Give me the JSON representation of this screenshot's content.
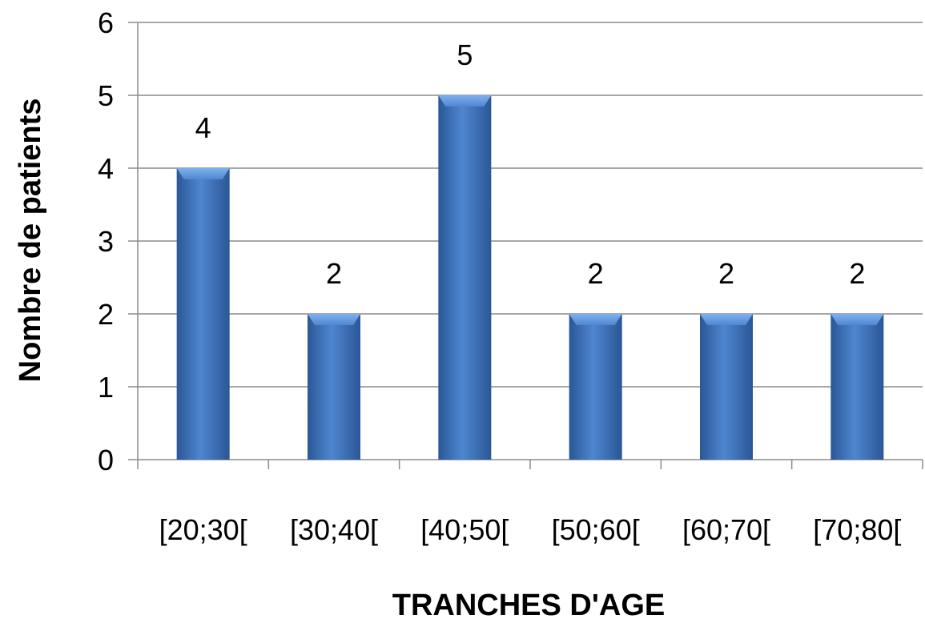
{
  "chart_data": {
    "type": "bar",
    "title": "",
    "xlabel": "TRANCHES D'AGE",
    "ylabel": "Nombre de patients",
    "categories": [
      "[20;30[",
      "[30;40[",
      "[40;50[",
      "[50;60[",
      "[60;70[",
      "[70;80["
    ],
    "values": [
      4,
      2,
      5,
      2,
      2,
      2
    ],
    "data_labels": [
      "4",
      "2",
      "5",
      "2",
      "2",
      "2"
    ],
    "ylim": [
      0,
      6
    ],
    "yticks": [
      0,
      1,
      2,
      3,
      4,
      5,
      6
    ],
    "grid": true,
    "legend": "none",
    "bar_color": "#4a7ebb"
  }
}
